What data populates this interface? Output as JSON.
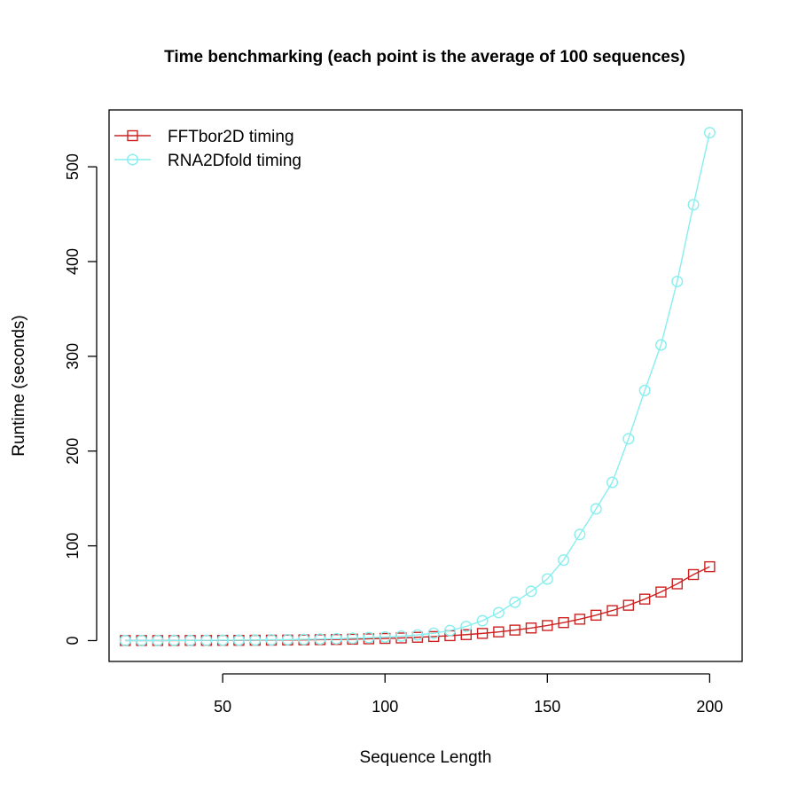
{
  "chart_data": {
    "type": "line",
    "title": "Time benchmarking (each point is the average of 100 sequences)",
    "xlabel": "Sequence Length",
    "ylabel": "Runtime (seconds)",
    "xlim": [
      15,
      210
    ],
    "ylim": [
      -22,
      560
    ],
    "x_ticks": [
      50,
      100,
      150,
      200
    ],
    "y_ticks": [
      0,
      100,
      200,
      300,
      400,
      500
    ],
    "grid": false,
    "legend_position": "top-left",
    "x": [
      20,
      25,
      30,
      35,
      40,
      45,
      50,
      55,
      60,
      65,
      70,
      75,
      80,
      85,
      90,
      95,
      100,
      105,
      110,
      115,
      120,
      125,
      130,
      135,
      140,
      145,
      150,
      155,
      160,
      165,
      170,
      175,
      180,
      185,
      190,
      195,
      200
    ],
    "series": [
      {
        "name": "FFTbor2D timing",
        "color": "#cc2222",
        "marker": "square",
        "values": [
          0.1,
          0.1,
          0.1,
          0.1,
          0.2,
          0.2,
          0.3,
          0.3,
          0.4,
          0.5,
          0.6,
          0.8,
          1.0,
          1.2,
          1.5,
          1.9,
          2.3,
          2.8,
          3.5,
          4.3,
          5.2,
          6.3,
          7.6,
          9.2,
          11.1,
          13.3,
          15.9,
          19.0,
          22.6,
          26.8,
          31.7,
          37.3,
          43.8,
          51.3,
          59.9,
          69.7,
          78.0
        ]
      },
      {
        "name": "RNA2Dfold timing",
        "color": "#88eeee",
        "marker": "circle",
        "values": [
          0.1,
          0.1,
          0.1,
          0.2,
          0.2,
          0.3,
          0.4,
          0.5,
          0.6,
          0.8,
          1.0,
          1.3,
          1.6,
          2.0,
          2.5,
          3.1,
          3.8,
          4.7,
          6.0,
          7.8,
          10.6,
          15.0,
          21.0,
          29.5,
          40.5,
          52.0,
          65.0,
          85.0,
          112.0,
          139.0,
          167.0,
          213.0,
          264.0,
          312.0,
          379.0,
          460.0,
          536.0
        ]
      }
    ]
  }
}
